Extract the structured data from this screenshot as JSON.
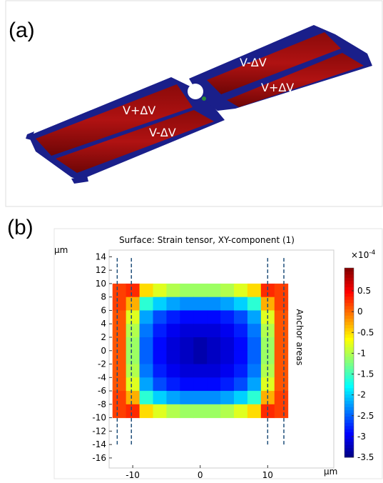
{
  "figure": {
    "panel_a": {
      "label": "(a)",
      "annotations": [
        "V-ΔV",
        "V+ΔV",
        "V+ΔV",
        "V-ΔV"
      ]
    },
    "panel_b": {
      "label": "(b)"
    }
  },
  "chart_data": {
    "type": "heatmap",
    "title": "Surface: Strain tensor, XY-component (1)",
    "x_unit": "µm",
    "y_unit": "µm",
    "xlim": [
      -13.5,
      19.8
    ],
    "ylim": [
      -17.5,
      15
    ],
    "xticks": [
      -10,
      0,
      10
    ],
    "yticks": [
      -16,
      -14,
      -12,
      -10,
      -8,
      -6,
      -4,
      -2,
      0,
      2,
      4,
      6,
      8,
      10,
      12,
      14
    ],
    "x": [
      -12,
      -10,
      -8,
      -6,
      -4,
      -2,
      0,
      2,
      4,
      6,
      8,
      10,
      12
    ],
    "y": [
      9,
      7,
      5,
      3,
      1,
      -1,
      -3,
      -5,
      -7,
      -9
    ],
    "z": [
      [
        0.2,
        0.3,
        -0.5,
        -0.8,
        -1.0,
        -1.1,
        -1.1,
        -1.1,
        -1.0,
        -0.8,
        -0.5,
        0.3,
        0.2
      ],
      [
        0.2,
        -0.3,
        -1.6,
        -2.0,
        -2.2,
        -2.3,
        -2.3,
        -2.3,
        -2.2,
        -2.0,
        -1.6,
        -0.3,
        0.2
      ],
      [
        0.1,
        -0.8,
        -2.2,
        -2.6,
        -2.8,
        -2.9,
        -2.9,
        -2.9,
        -2.8,
        -2.6,
        -2.2,
        -0.8,
        0.1
      ],
      [
        0.1,
        -1.0,
        -2.4,
        -2.8,
        -3.0,
        -3.1,
        -3.1,
        -3.1,
        -3.0,
        -2.8,
        -2.4,
        -1.0,
        0.1
      ],
      [
        0.1,
        -1.1,
        -2.5,
        -2.9,
        -3.1,
        -3.2,
        -3.3,
        -3.2,
        -3.1,
        -2.9,
        -2.5,
        -1.1,
        0.1
      ],
      [
        0.1,
        -1.1,
        -2.5,
        -2.9,
        -3.1,
        -3.2,
        -3.3,
        -3.2,
        -3.1,
        -2.9,
        -2.5,
        -1.1,
        0.1
      ],
      [
        0.1,
        -1.0,
        -2.4,
        -2.8,
        -3.0,
        -3.1,
        -3.1,
        -3.1,
        -3.0,
        -2.8,
        -2.4,
        -1.0,
        0.1
      ],
      [
        0.1,
        -0.8,
        -2.2,
        -2.6,
        -2.8,
        -2.9,
        -2.9,
        -2.9,
        -2.8,
        -2.6,
        -2.2,
        -0.8,
        0.1
      ],
      [
        0.2,
        -0.3,
        -1.6,
        -2.0,
        -2.2,
        -2.3,
        -2.3,
        -2.3,
        -2.2,
        -2.0,
        -1.6,
        -0.3,
        0.2
      ],
      [
        0.2,
        0.3,
        -0.5,
        -0.8,
        -1.0,
        -1.1,
        -1.1,
        -1.1,
        -1.0,
        -0.8,
        -0.5,
        0.3,
        0.2
      ]
    ],
    "clim": [
      -3.5,
      1.05
    ],
    "colorbar_ticks": [
      0.5,
      0,
      -0.5,
      -1,
      -1.5,
      -2,
      -2.5,
      -3,
      -3.5
    ],
    "colorbar_unit": "×10",
    "colorbar_exponent": "-4",
    "colormap": "jet",
    "anchor_lines_x": [
      -12.3,
      -10.2,
      10,
      12.4
    ],
    "anchor_lines_y": [
      -14,
      14
    ],
    "anchor_label": "Anchor areas"
  }
}
